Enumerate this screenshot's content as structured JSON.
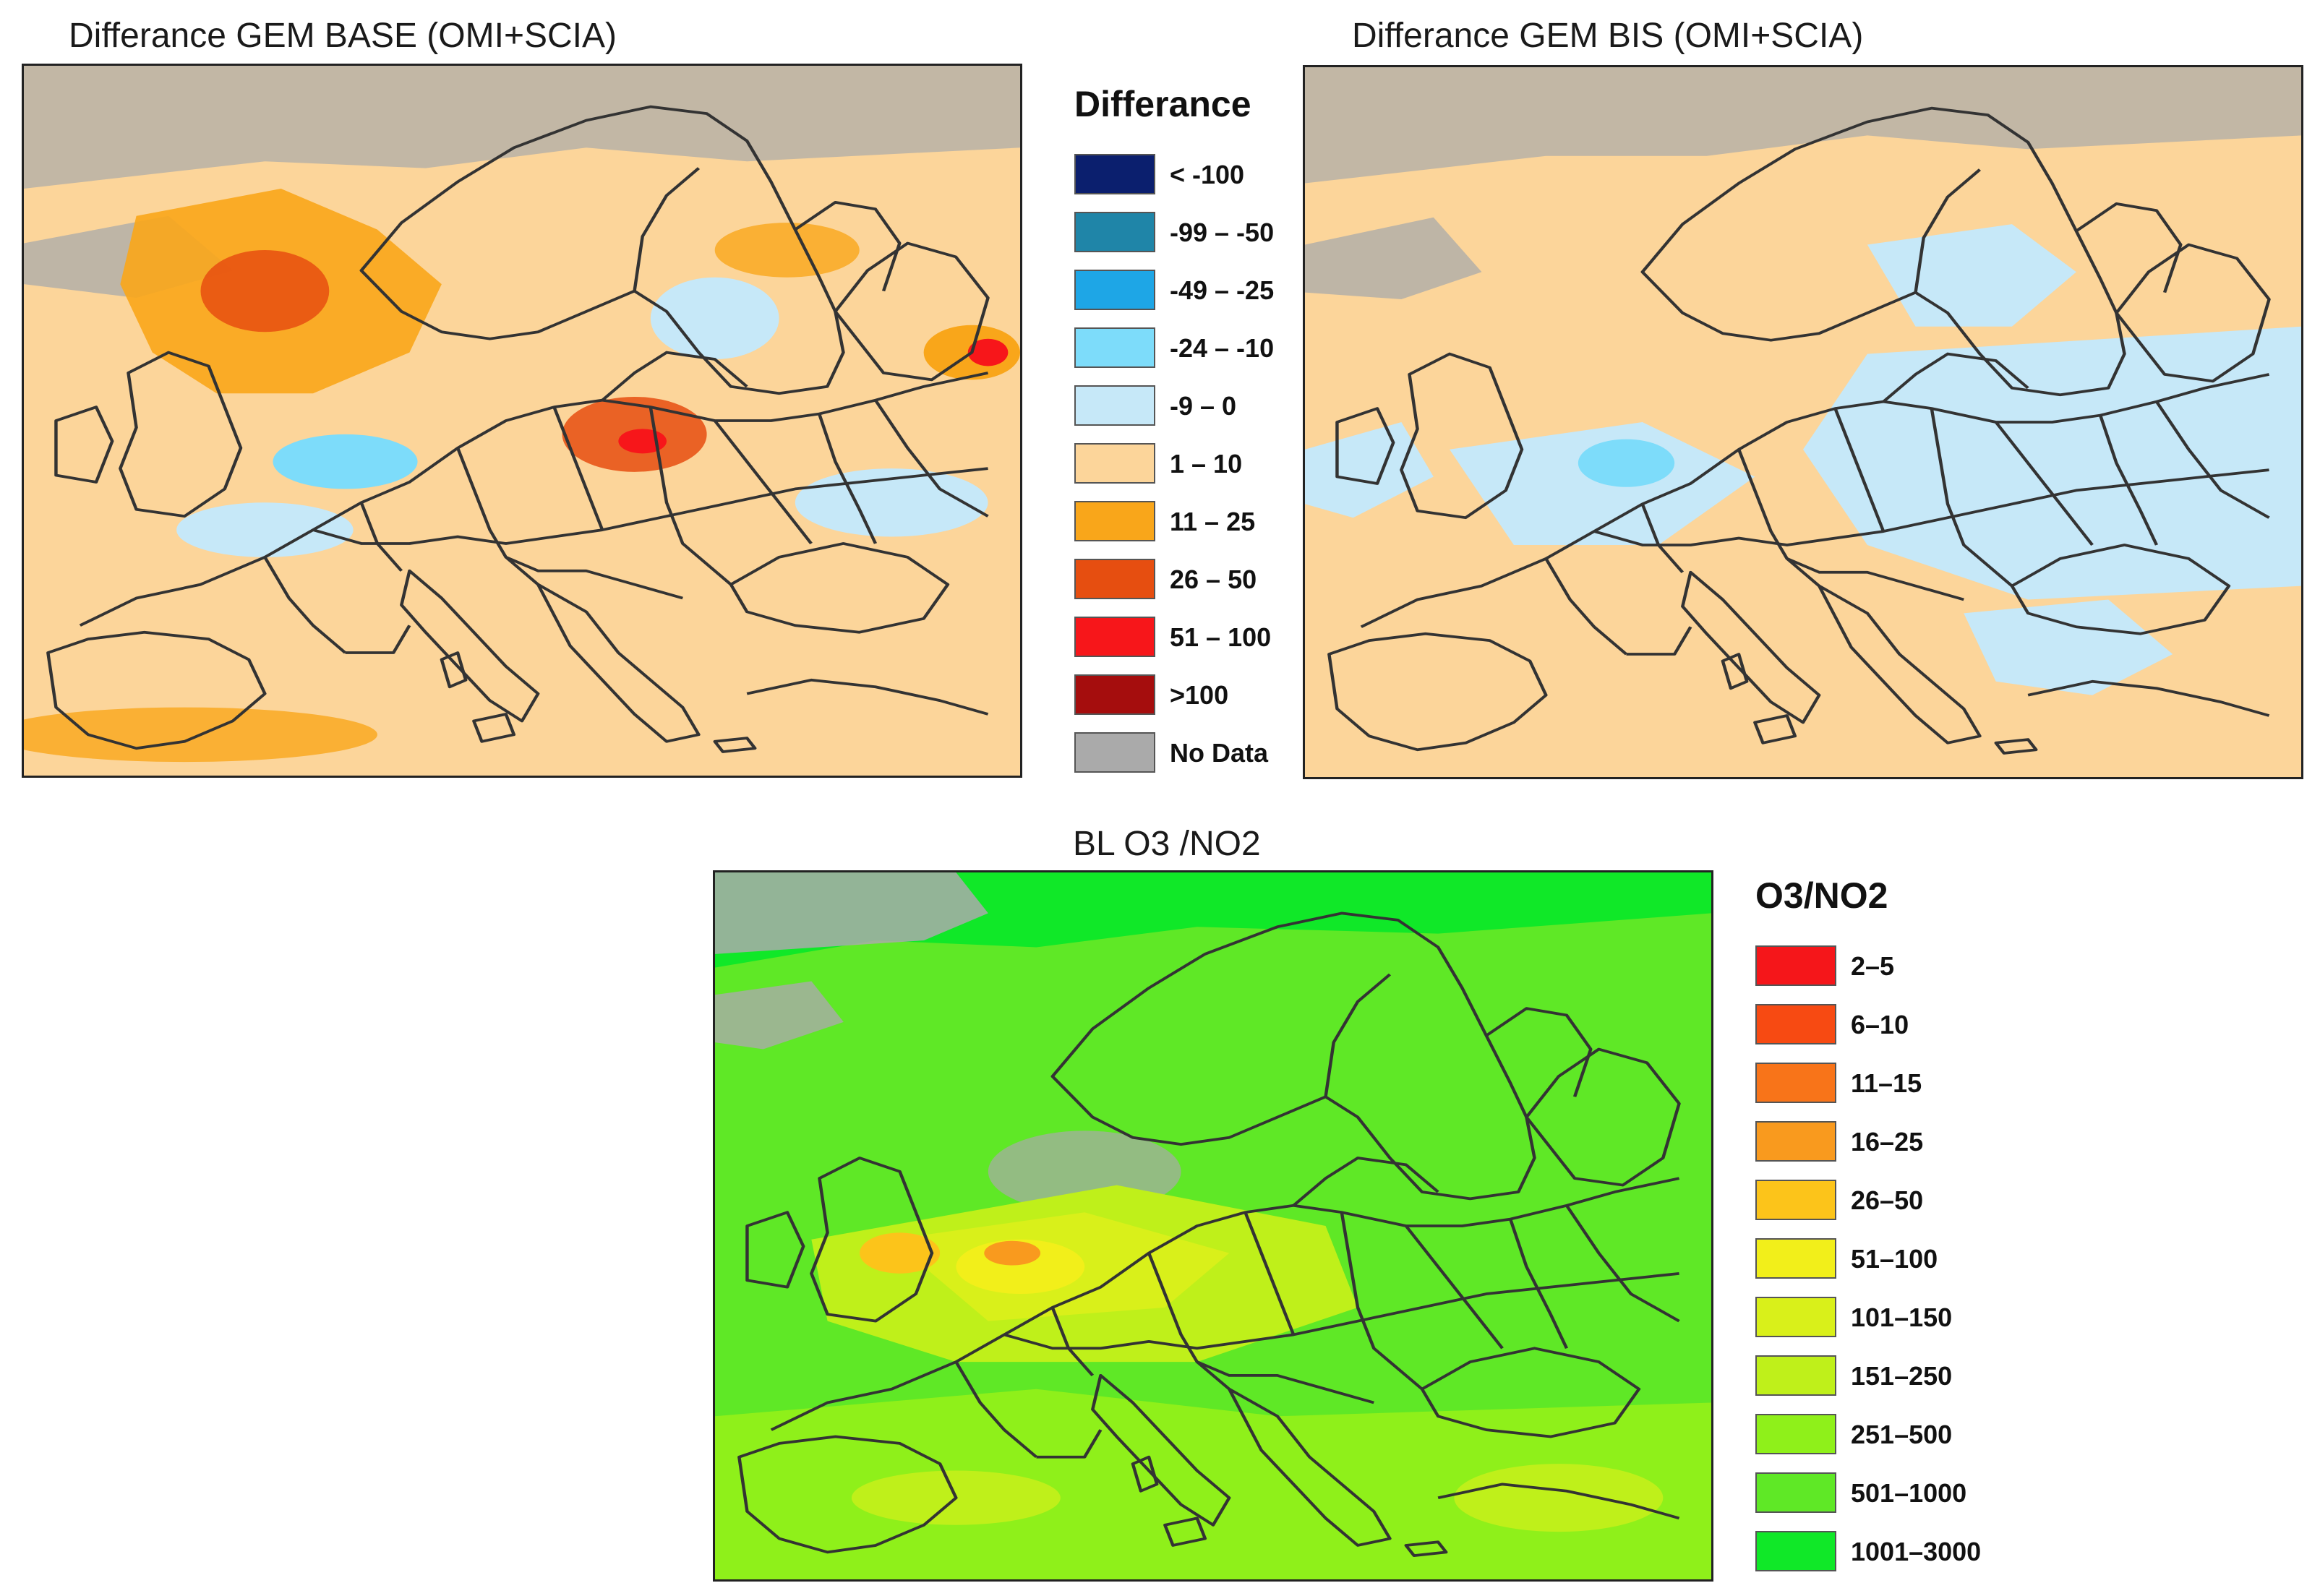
{
  "panels": {
    "base": {
      "title": "Differance GEM BASE (OMI+SCIA)"
    },
    "bis": {
      "title": "Differance GEM BIS (OMI+SCIA)"
    },
    "ratio": {
      "title": "BL O3 /NO2"
    }
  },
  "legend_difference": {
    "title": "Differance",
    "items": [
      {
        "label": "< -100",
        "color": "#0b1f6e"
      },
      {
        "label": "-99 – -50",
        "color": "#1f85a8"
      },
      {
        "label": "-49 – -25",
        "color": "#1ea6e6"
      },
      {
        "label": "-24 – -10",
        "color": "#7ddcfa"
      },
      {
        "label": "-9 – 0",
        "color": "#c6e8f8"
      },
      {
        "label": "1 – 10",
        "color": "#fcd59a"
      },
      {
        "label": "11 – 25",
        "color": "#f9a61a"
      },
      {
        "label": "26 – 50",
        "color": "#e64e10"
      },
      {
        "label": "51 – 100",
        "color": "#f7161a"
      },
      {
        "label": ">100",
        "color": "#a50d0d"
      },
      {
        "label": "No Data",
        "color": "#aaaaaa"
      }
    ]
  },
  "legend_ratio": {
    "title": "O3/NO2",
    "items": [
      {
        "label": "2–5",
        "color": "#f5161a"
      },
      {
        "label": "6–10",
        "color": "#f74a12"
      },
      {
        "label": "11–15",
        "color": "#f87419"
      },
      {
        "label": "16–25",
        "color": "#f99a1e"
      },
      {
        "label": "26–50",
        "color": "#fcc41a"
      },
      {
        "label": "51–100",
        "color": "#f2ef1a"
      },
      {
        "label": "101–150",
        "color": "#d9f01a"
      },
      {
        "label": "151–250",
        "color": "#bff01a"
      },
      {
        "label": "251–500",
        "color": "#8ff01a"
      },
      {
        "label": "501–1000",
        "color": "#5fe826"
      },
      {
        "label": "1001–3000",
        "color": "#10e828"
      }
    ]
  }
}
